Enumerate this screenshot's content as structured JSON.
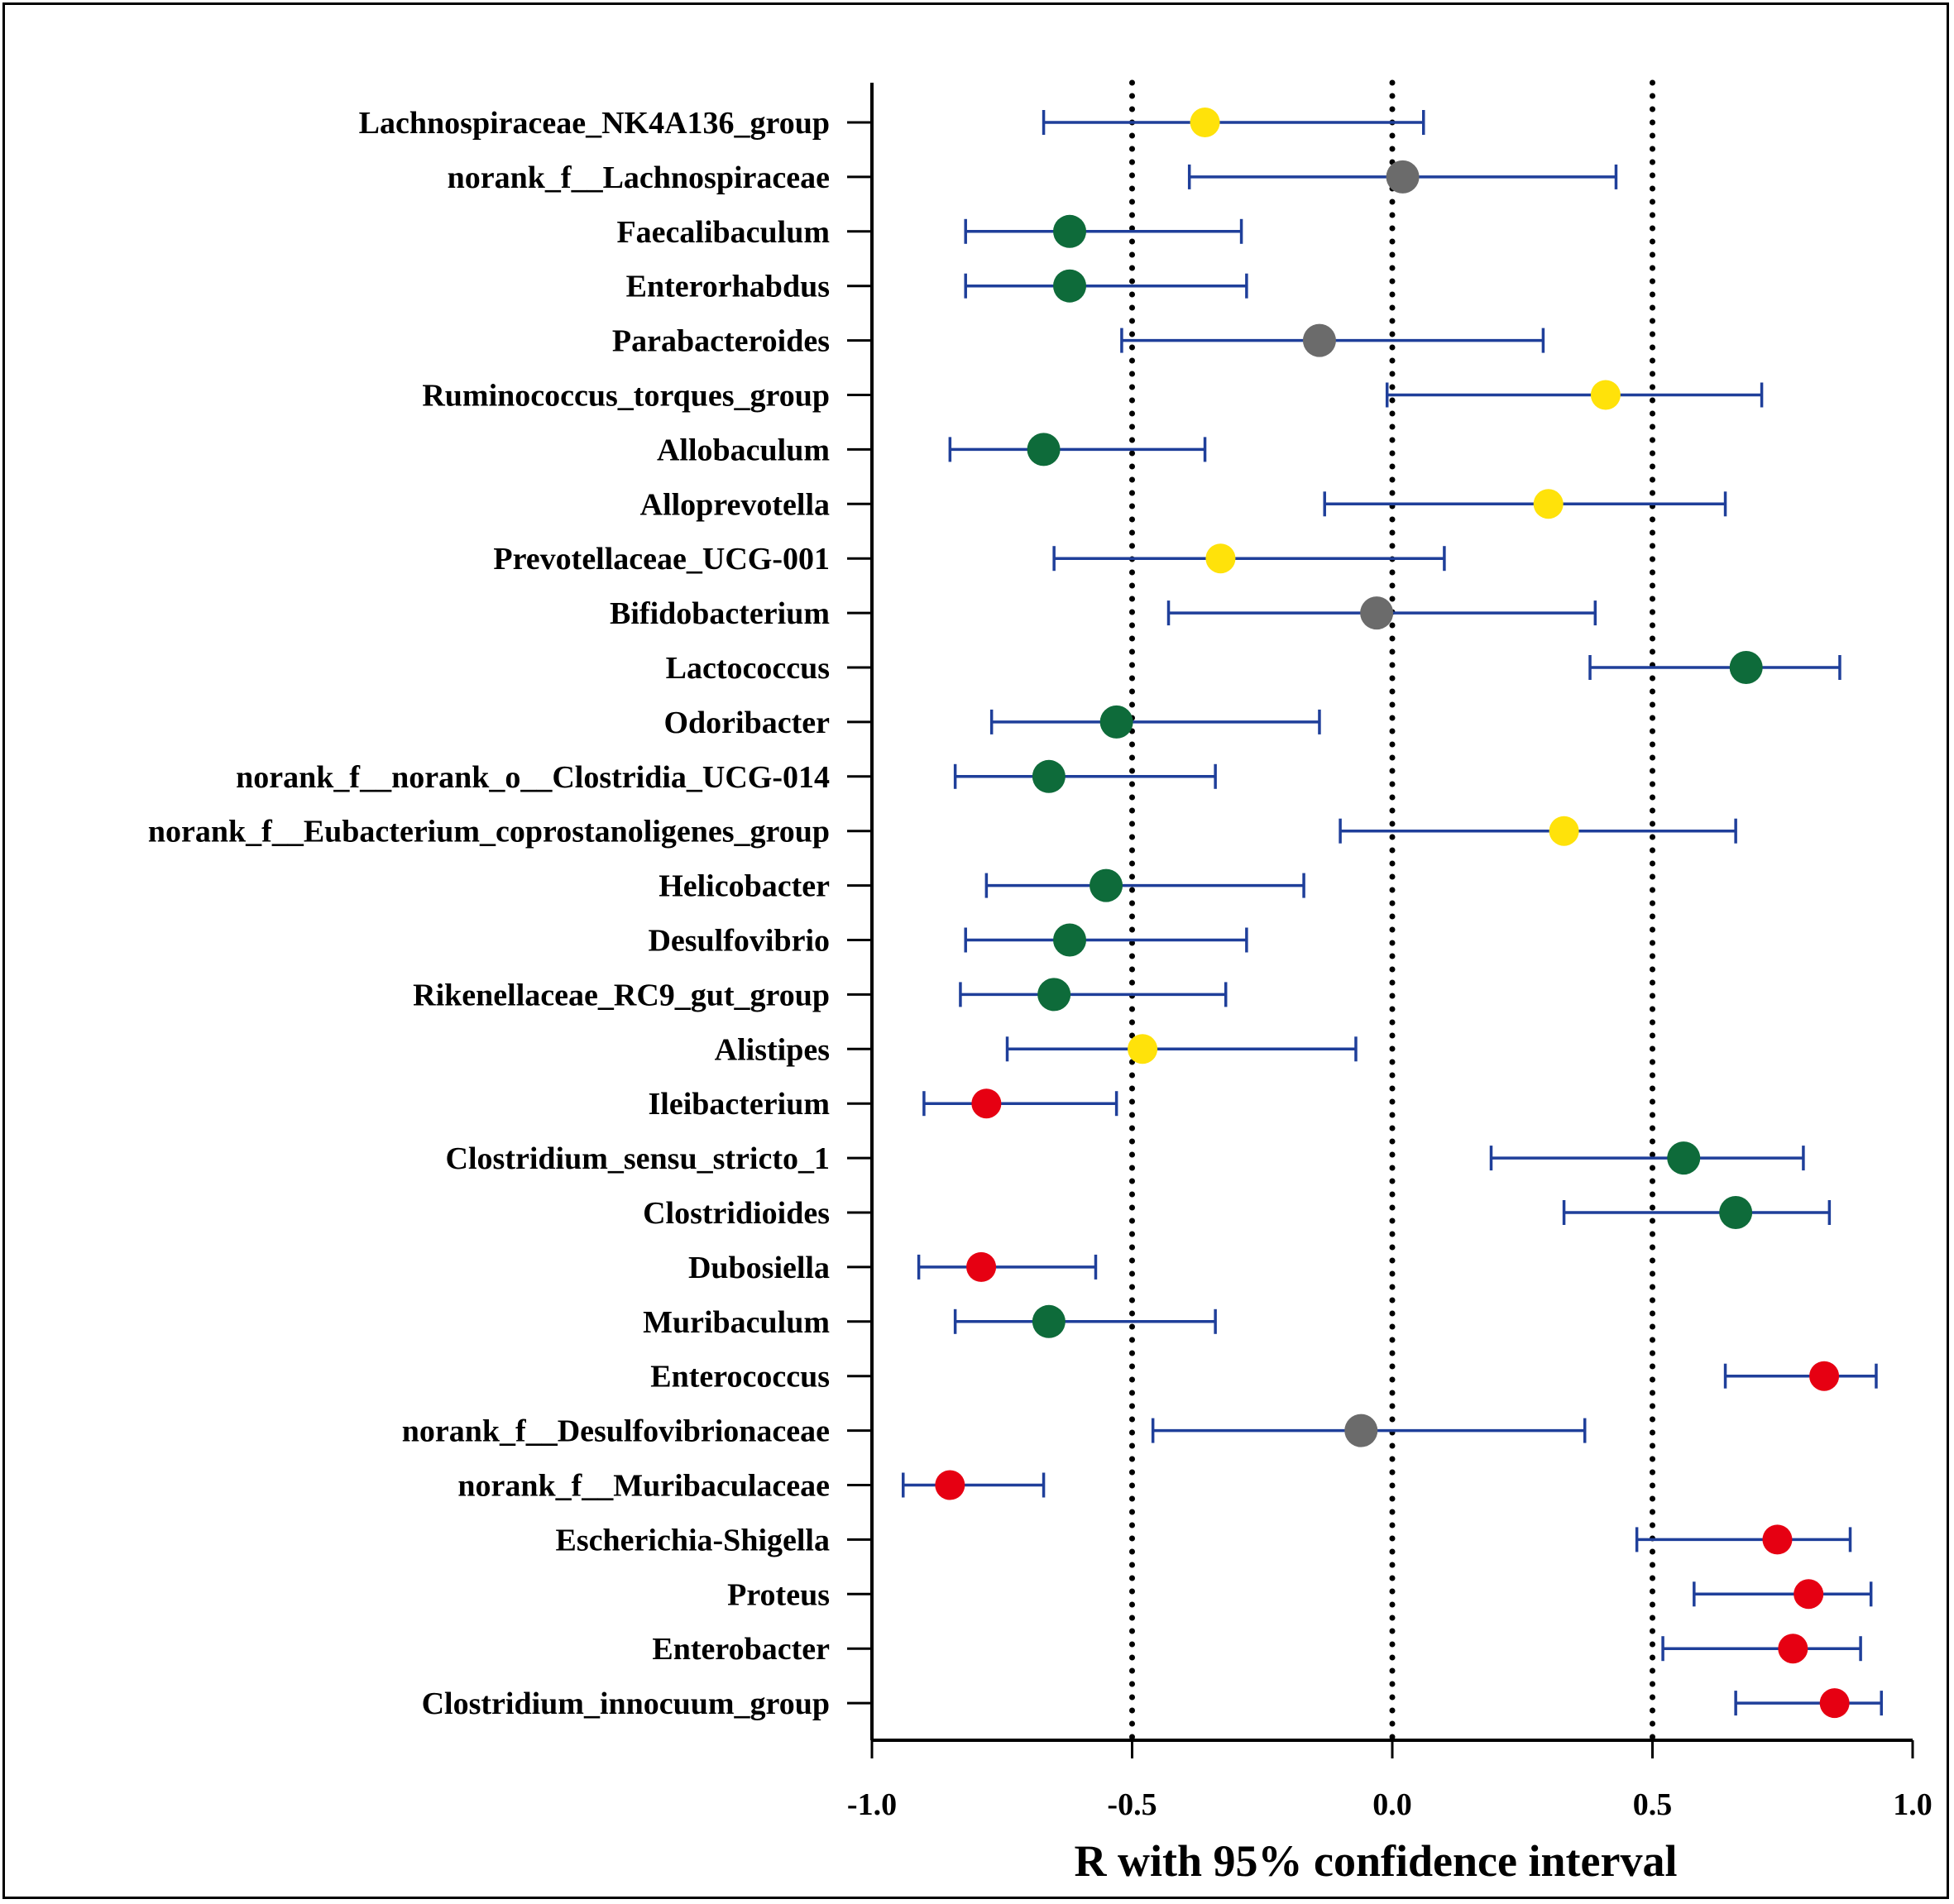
{
  "chart_data": {
    "type": "forest",
    "xlabel": "R with 95% confidence interval",
    "xlim": [
      -1.0,
      1.0
    ],
    "xticks": [
      -1.0,
      -0.5,
      0.0,
      0.5,
      1.0
    ],
    "xtick_labels": [
      "-1.0",
      "-0.5",
      "0.0",
      "0.5",
      "1.0"
    ],
    "reference_lines": [
      -0.5,
      0.0,
      0.5
    ],
    "colors": {
      "yellow": "#FFE20A",
      "gray": "#6B6B6B",
      "green": "#0E6B3A",
      "red": "#E60012",
      "errorbar": "#1F3F9A",
      "axis": "#000000"
    },
    "rows": [
      {
        "label": "Lachnospiraceae_NK4A136_group",
        "r": -0.36,
        "lo": -0.67,
        "hi": 0.06,
        "color": "yellow"
      },
      {
        "label": "norank_f__Lachnospiraceae",
        "r": 0.02,
        "lo": -0.39,
        "hi": 0.43,
        "color": "gray"
      },
      {
        "label": "Faecalibaculum",
        "r": -0.62,
        "lo": -0.82,
        "hi": -0.29,
        "color": "green"
      },
      {
        "label": "Enterorhabdus",
        "r": -0.62,
        "lo": -0.82,
        "hi": -0.28,
        "color": "green"
      },
      {
        "label": "Parabacteroides",
        "r": -0.14,
        "lo": -0.52,
        "hi": 0.29,
        "color": "gray"
      },
      {
        "label": "Ruminococcus_torques_group",
        "r": 0.41,
        "lo": -0.01,
        "hi": 0.71,
        "color": "yellow"
      },
      {
        "label": "Allobaculum",
        "r": -0.67,
        "lo": -0.85,
        "hi": -0.36,
        "color": "green"
      },
      {
        "label": "Alloprevotella",
        "r": 0.3,
        "lo": -0.13,
        "hi": 0.64,
        "color": "yellow"
      },
      {
        "label": "Prevotellaceae_UCG-001",
        "r": -0.33,
        "lo": -0.65,
        "hi": 0.1,
        "color": "yellow"
      },
      {
        "label": "Bifidobacterium",
        "r": -0.03,
        "lo": -0.43,
        "hi": 0.39,
        "color": "gray"
      },
      {
        "label": "Lactococcus",
        "r": 0.68,
        "lo": 0.38,
        "hi": 0.86,
        "color": "green"
      },
      {
        "label": "Odoribacter",
        "r": -0.53,
        "lo": -0.77,
        "hi": -0.14,
        "color": "green"
      },
      {
        "label": "norank_f__norank_o__Clostridia_UCG-014",
        "r": -0.66,
        "lo": -0.84,
        "hi": -0.34,
        "color": "green"
      },
      {
        "label": "norank_f__Eubacterium_coprostanoligenes_group",
        "r": 0.33,
        "lo": -0.1,
        "hi": 0.66,
        "color": "yellow"
      },
      {
        "label": "Helicobacter",
        "r": -0.55,
        "lo": -0.78,
        "hi": -0.17,
        "color": "green"
      },
      {
        "label": "Desulfovibrio",
        "r": -0.62,
        "lo": -0.82,
        "hi": -0.28,
        "color": "green"
      },
      {
        "label": "Rikenellaceae_RC9_gut_group",
        "r": -0.65,
        "lo": -0.83,
        "hi": -0.32,
        "color": "green"
      },
      {
        "label": "Alistipes",
        "r": -0.48,
        "lo": -0.74,
        "hi": -0.07,
        "color": "yellow"
      },
      {
        "label": "Ileibacterium",
        "r": -0.78,
        "lo": -0.9,
        "hi": -0.53,
        "color": "red"
      },
      {
        "label": "Clostridium_sensu_stricto_1",
        "r": 0.56,
        "lo": 0.19,
        "hi": 0.79,
        "color": "green"
      },
      {
        "label": "Clostridioides",
        "r": 0.66,
        "lo": 0.33,
        "hi": 0.84,
        "color": "green"
      },
      {
        "label": "Dubosiella",
        "r": -0.79,
        "lo": -0.91,
        "hi": -0.57,
        "color": "red"
      },
      {
        "label": "Muribaculum",
        "r": -0.66,
        "lo": -0.84,
        "hi": -0.34,
        "color": "green"
      },
      {
        "label": "Enterococcus",
        "r": 0.83,
        "lo": 0.64,
        "hi": 0.93,
        "color": "red"
      },
      {
        "label": "norank_f__Desulfovibrionaceae",
        "r": -0.06,
        "lo": -0.46,
        "hi": 0.37,
        "color": "gray"
      },
      {
        "label": "norank_f__Muribaculaceae",
        "r": -0.85,
        "lo": -0.94,
        "hi": -0.67,
        "color": "red"
      },
      {
        "label": "Escherichia-Shigella",
        "r": 0.74,
        "lo": 0.47,
        "hi": 0.88,
        "color": "red"
      },
      {
        "label": "Proteus",
        "r": 0.8,
        "lo": 0.58,
        "hi": 0.92,
        "color": "red"
      },
      {
        "label": "Enterobacter",
        "r": 0.77,
        "lo": 0.52,
        "hi": 0.9,
        "color": "red"
      },
      {
        "label": "Clostridium_innocuum_group",
        "r": 0.85,
        "lo": 0.66,
        "hi": 0.94,
        "color": "red"
      }
    ]
  }
}
